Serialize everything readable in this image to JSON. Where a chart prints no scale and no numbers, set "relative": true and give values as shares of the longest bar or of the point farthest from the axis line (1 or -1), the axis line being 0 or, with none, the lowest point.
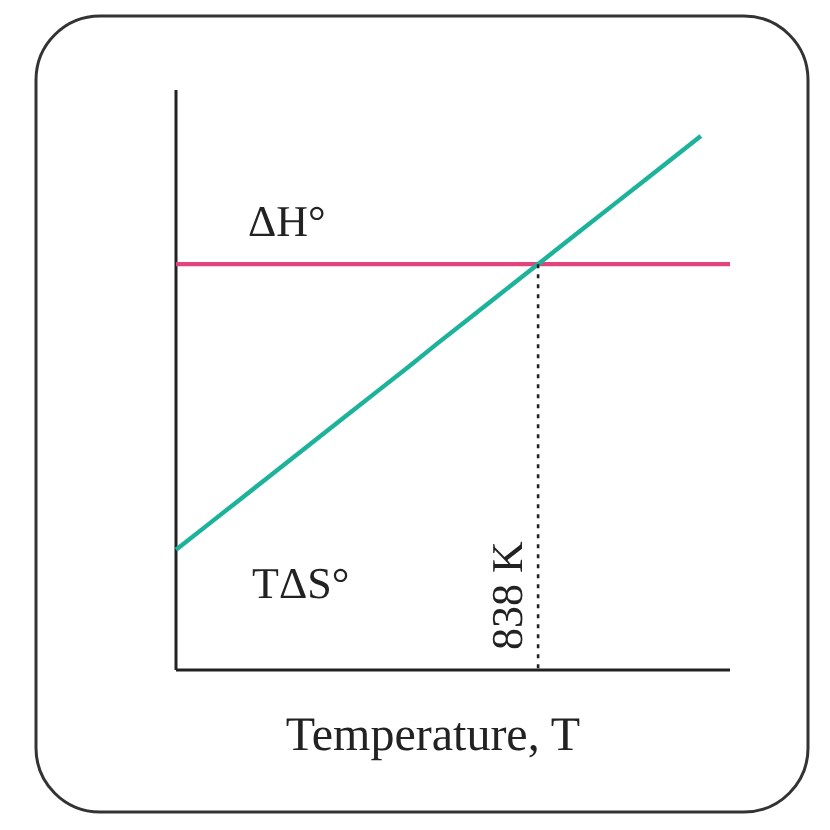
{
  "chart_data": {
    "type": "line",
    "relative": true,
    "xlabel": "Temperature, T",
    "categories": [
      null,
      null,
      null,
      null,
      null,
      null,
      null,
      null,
      null,
      null,
      null,
      null,
      null,
      null,
      null,
      null,
      null,
      null,
      null,
      null
    ],
    "series": [
      {
        "name": "ΔH°",
        "color": "#e2457c",
        "values": [
          0.76,
          0.76,
          0.76,
          0.76,
          0.76,
          0.76,
          0.76,
          0.76,
          0.76,
          0.76,
          0.76,
          0.76,
          0.76,
          0.76,
          0.76,
          0.76,
          0.76,
          0.76,
          0.76,
          0.76
        ]
      },
      {
        "name": "TΔS°",
        "color": "#1db39b",
        "values": [
          0.225,
          0.268,
          0.311,
          0.354,
          0.397,
          0.44,
          0.483,
          0.526,
          0.569,
          0.613,
          0.656,
          0.699,
          0.742,
          0.785,
          0.828,
          0.871,
          0.914,
          0.957,
          1.0,
          null
        ]
      }
    ],
    "annotations": [
      "838 K"
    ]
  }
}
